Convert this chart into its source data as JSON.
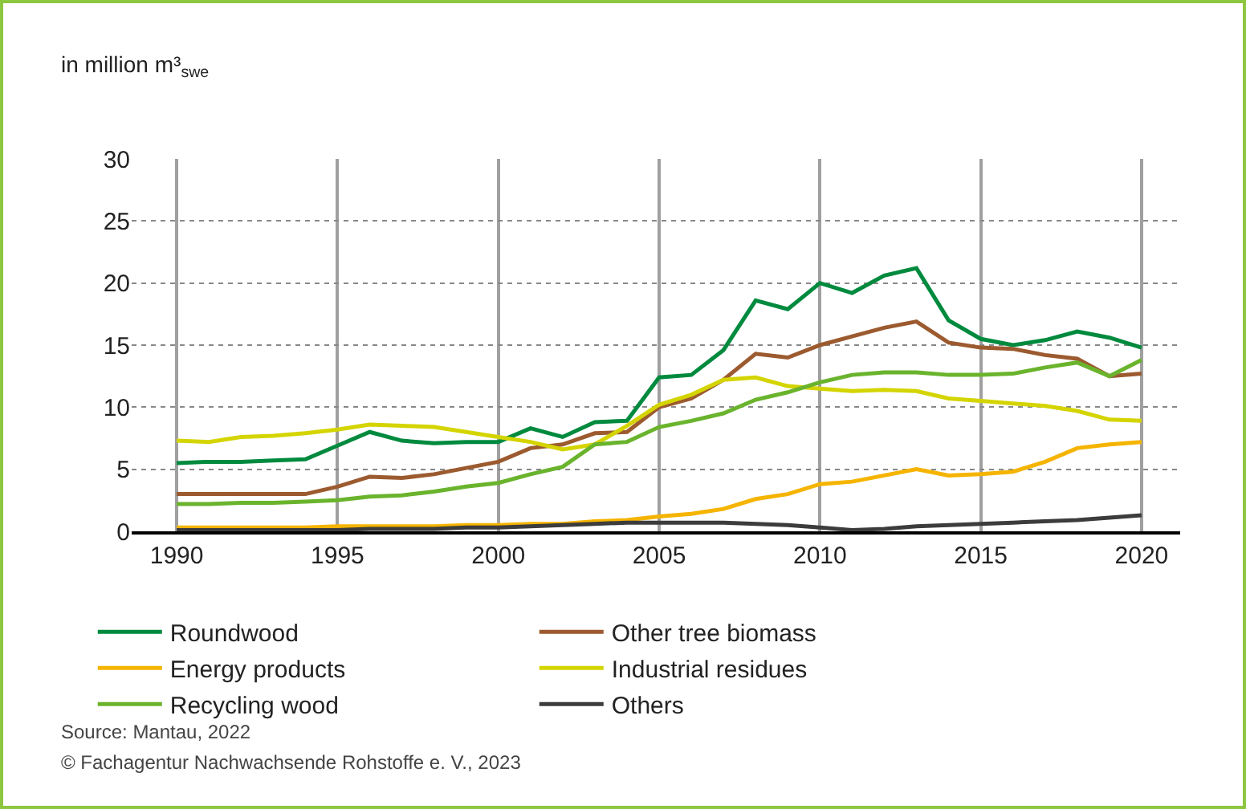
{
  "chart_data": {
    "type": "line",
    "ylabel": "in million m³$_{swe}$",
    "x": [
      1990,
      1991,
      1992,
      1993,
      1994,
      1995,
      1996,
      1997,
      1998,
      1999,
      2000,
      2001,
      2002,
      2003,
      2004,
      2005,
      2006,
      2007,
      2008,
      2009,
      2010,
      2011,
      2012,
      2013,
      2014,
      2015,
      2016,
      2017,
      2018,
      2019,
      2020
    ],
    "series": [
      {
        "name": "Roundwood",
        "color": "#008a3e",
        "values": [
          5.5,
          5.6,
          5.6,
          5.7,
          5.8,
          6.9,
          8.0,
          7.3,
          7.1,
          7.2,
          7.2,
          8.3,
          7.6,
          8.8,
          8.9,
          12.4,
          12.6,
          14.6,
          18.6,
          17.9,
          20.0,
          19.2,
          20.6,
          21.2,
          17.0,
          15.5,
          15.0,
          15.4,
          16.1,
          15.6,
          14.8
        ]
      },
      {
        "name": "Other tree biomass",
        "color": "#9c5a2f",
        "values": [
          3.0,
          3.0,
          3.0,
          3.0,
          3.0,
          3.6,
          4.4,
          4.3,
          4.6,
          5.1,
          5.6,
          6.7,
          7.0,
          7.9,
          8.0,
          10.0,
          10.7,
          12.2,
          14.3,
          14.0,
          15.0,
          15.7,
          16.4,
          16.9,
          15.2,
          14.8,
          14.7,
          14.2,
          13.9,
          12.5,
          12.7
        ]
      },
      {
        "name": "Energy products",
        "color": "#f5b400",
        "values": [
          0.3,
          0.3,
          0.3,
          0.3,
          0.3,
          0.4,
          0.4,
          0.4,
          0.4,
          0.5,
          0.5,
          0.6,
          0.6,
          0.8,
          0.9,
          1.2,
          1.4,
          1.8,
          2.6,
          3.0,
          3.8,
          4.0,
          4.5,
          5.0,
          4.5,
          4.6,
          4.8,
          5.6,
          6.7,
          7.0,
          7.2
        ]
      },
      {
        "name": "Industrial residues",
        "color": "#d4d400",
        "values": [
          7.3,
          7.2,
          7.6,
          7.7,
          7.9,
          8.2,
          8.6,
          8.5,
          8.4,
          8.0,
          7.6,
          7.2,
          6.6,
          7.0,
          8.5,
          10.2,
          11.0,
          12.2,
          12.4,
          11.7,
          11.5,
          11.3,
          11.4,
          11.3,
          10.7,
          10.5,
          10.3,
          10.1,
          9.7,
          9.0,
          8.9
        ]
      },
      {
        "name": "Recycling wood",
        "color": "#6ab42d",
        "values": [
          2.2,
          2.2,
          2.3,
          2.3,
          2.4,
          2.5,
          2.8,
          2.9,
          3.2,
          3.6,
          3.9,
          4.6,
          5.2,
          7.0,
          7.2,
          8.4,
          8.9,
          9.5,
          10.6,
          11.2,
          12.0,
          12.6,
          12.8,
          12.8,
          12.6,
          12.6,
          12.7,
          13.2,
          13.6,
          12.5,
          13.8
        ]
      },
      {
        "name": "Others",
        "color": "#3c3c3c",
        "values": [
          0.1,
          0.1,
          0.1,
          0.1,
          0.1,
          0.1,
          0.2,
          0.2,
          0.2,
          0.3,
          0.3,
          0.4,
          0.5,
          0.6,
          0.7,
          0.7,
          0.7,
          0.7,
          0.6,
          0.5,
          0.3,
          0.1,
          0.2,
          0.4,
          0.5,
          0.6,
          0.7,
          0.8,
          0.9,
          1.1,
          1.3
        ]
      }
    ],
    "xlim": [
      1988.6,
      2021.2
    ],
    "xticks": [
      1990,
      1995,
      2000,
      2005,
      2010,
      2015,
      2020
    ],
    "ylim": [
      0,
      30
    ],
    "yticks": [
      0,
      5,
      10,
      15,
      20,
      25,
      30
    ],
    "grid": true,
    "legend": "bottom",
    "marker": "none",
    "line_style": "solid",
    "annotations": [
      "Source: Mantau, 2022",
      "© Fachagentur Nachwachsende Rohstoffe e. V., 2023"
    ]
  }
}
